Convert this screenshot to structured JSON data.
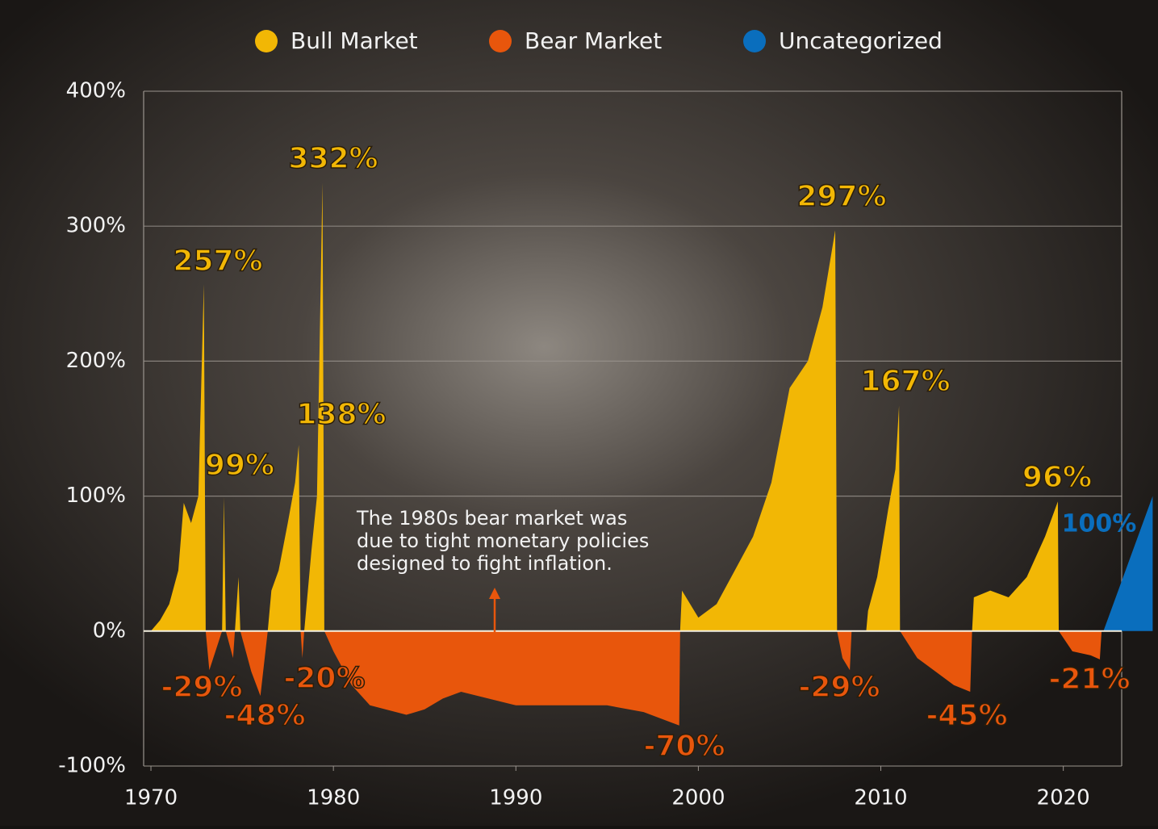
{
  "chart_data": {
    "type": "area",
    "legend": "top",
    "grid": true,
    "xlim": [
      1969.6,
      2023.2
    ],
    "ylim": [
      -100,
      400
    ],
    "xticks": [
      1970,
      1980,
      1990,
      2000,
      2010,
      2020
    ],
    "yticks": [
      {
        "value": 400,
        "label": "400%"
      },
      {
        "value": 300,
        "label": "300%"
      },
      {
        "value": 200,
        "label": "200%"
      },
      {
        "value": 100,
        "label": "100%"
      },
      {
        "value": 0,
        "label": "0%"
      },
      {
        "value": -100,
        "label": "-100%"
      }
    ],
    "note": [
      "The 1980s bear market was",
      "due to tight monetary policies",
      "designed to fight inflation."
    ],
    "series": [
      {
        "name": "Bull Market",
        "color": "#f2b705",
        "x": [
          1970.0,
          1970.5,
          1971,
          1971.5,
          1971.8,
          1972.2,
          1972.6,
          1972.9,
          1973.0,
          null,
          1973.9,
          1974.0,
          1974.1,
          null,
          1974.6,
          1974.8,
          1974.9,
          null,
          1976.4,
          1976.6,
          1977,
          1977.5,
          1977.9,
          1978.1,
          1978.2,
          null,
          1978.4,
          1978.8,
          1979.1,
          1979.4,
          1979.5,
          null,
          1999.0,
          1999.1,
          2000,
          2001,
          2002,
          2003,
          2004,
          2005,
          2006,
          2006.8,
          2007.5,
          2007.6,
          null,
          2009.2,
          2009.3,
          2009.8,
          2010.4,
          2010.8,
          2011.0,
          2011.05,
          null,
          2015.0,
          2015.1,
          2016,
          2017,
          2018,
          2019,
          2019.7,
          2019.75
        ],
        "values": [
          0,
          8,
          20,
          45,
          95,
          80,
          100,
          257,
          0,
          null,
          0,
          99,
          0,
          null,
          0,
          40,
          0,
          null,
          0,
          30,
          45,
          80,
          110,
          138,
          0,
          null,
          0,
          60,
          100,
          332,
          0,
          null,
          0,
          30,
          10,
          20,
          45,
          70,
          110,
          180,
          200,
          240,
          297,
          0,
          null,
          0,
          15,
          40,
          90,
          120,
          167,
          0,
          null,
          0,
          25,
          30,
          25,
          40,
          70,
          96,
          0
        ],
        "labels": [
          {
            "value": 257,
            "label": "257%"
          },
          {
            "value": 99,
            "label": "99%"
          },
          {
            "value": 332,
            "label": "332%"
          },
          {
            "value": 138,
            "label": "138%"
          },
          {
            "value": 297,
            "label": "297%"
          },
          {
            "value": 167,
            "label": "167%"
          },
          {
            "value": 96,
            "label": "96%"
          }
        ]
      },
      {
        "name": "Bear Market",
        "color": "#e8560c",
        "x": [
          1973.0,
          1973.2,
          1973.9,
          null,
          1974.1,
          1974.5,
          1974.6,
          null,
          1974.9,
          1975.5,
          1976.0,
          1976.4,
          null,
          1978.2,
          1978.3,
          1978.4,
          null,
          1979.5,
          1980,
          1981,
          1982,
          1984,
          1985,
          1986,
          1987,
          1990,
          1995,
          1997,
          1998.95,
          1999.0,
          null,
          2007.6,
          2007.9,
          2008.3,
          2008.4,
          null,
          2011.05,
          2012,
          2013,
          2014,
          2014.9,
          2015.0,
          null,
          2019.75,
          2020.5,
          2021.5,
          2022.0,
          2022.1
        ],
        "values": [
          0,
          -29,
          0,
          null,
          0,
          -20,
          0,
          null,
          0,
          -30,
          -48,
          0,
          null,
          0,
          -20,
          0,
          null,
          0,
          -15,
          -40,
          -55,
          -62,
          -58,
          -50,
          -45,
          -55,
          -55,
          -60,
          -70,
          0,
          null,
          0,
          -20,
          -29,
          0,
          null,
          0,
          -20,
          -30,
          -40,
          -45,
          0,
          null,
          0,
          -15,
          -18,
          -21,
          0
        ],
        "labels": [
          {
            "value": -29,
            "label": "-29%"
          },
          {
            "value": -48,
            "label": "-48%"
          },
          {
            "value": -20,
            "label": "-20%"
          },
          {
            "value": -70,
            "label": "-70%"
          },
          {
            "value": -29,
            "label": "-29%"
          },
          {
            "value": -45,
            "label": "-45%"
          },
          {
            "value": -21,
            "label": "-21%"
          }
        ]
      },
      {
        "name": "Uncategorized",
        "color": "#0a6ebd",
        "x": [
          2022.2,
          2024.9,
          2024.9
        ],
        "values": [
          0,
          100,
          0
        ],
        "labels": [
          {
            "value": 100,
            "label": "100%"
          }
        ]
      }
    ]
  }
}
